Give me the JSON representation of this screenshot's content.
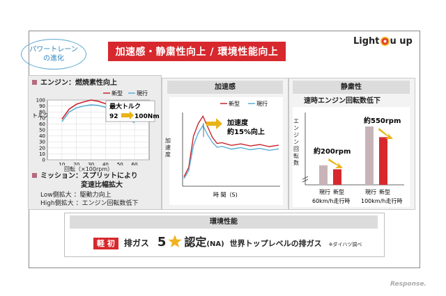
{
  "header": {
    "tag_line1": "パワートレーン",
    "tag_line2": "の進化",
    "banner": "加速感・静粛性向上 / 環境性能向上",
    "brand_before": "Light ",
    "brand_after": "u up",
    "brand_o": "o"
  },
  "engine": {
    "title": "エンジン：燃焼素性向上",
    "legend_new": "新型",
    "legend_current": "現行",
    "ylabel": "トルク (Nm)",
    "xlabel": "回転（×100rpm）",
    "callout_title": "最大トルク",
    "callout_from": "92",
    "callout_to": "100Nm"
  },
  "mission": {
    "line1": "ミッション：スプリットにより",
    "line2": "変速比幅拡大",
    "line3": "Low側拡大 ：駆動力向上",
    "line4": "High側拡大 ：エンジン回転数低下"
  },
  "accel": {
    "head": "加速感",
    "legend_new": "新型",
    "legend_current": "現行",
    "ylabel": "加速度",
    "xlabel": "時 間（S)",
    "annotation_line1": "加速度",
    "annotation_line2": "約15%向上"
  },
  "quiet": {
    "head": "静粛性",
    "subtitle": "速時エンジン回転数低下",
    "ylabel": "エンジン回転数",
    "label_200": "約200rpm",
    "label_550": "約550rpm",
    "cat1_current": "現行",
    "cat1_new": "新型",
    "cat1_speed": "60km/h走行時",
    "cat2_current": "現行",
    "cat2_new": "新型",
    "cat2_speed": "100km/h走行時"
  },
  "env": {
    "head": "環境性能",
    "badge": "軽 初",
    "text1": "排ガス",
    "stars": "5",
    "text2": "認定",
    "text_na": "(NA)",
    "text3": "世界トップレベルの排ガス",
    "note": "※ダイハツ調べ"
  },
  "watermark": "Response.",
  "colors": {
    "new": "#c8232c",
    "current": "#5aaed6",
    "bar_current": "#c8b4b8",
    "bar_new": "#d7282d",
    "arrow": "#e9b418",
    "banner": "#d7282d"
  },
  "chart_data": [
    {
      "type": "line",
      "title": "エンジン：燃焼素性向上",
      "xlabel": "回転（×100rpm）",
      "ylabel": "トルク (Nm)",
      "xlim": [
        0,
        70
      ],
      "ylim": [
        0,
        100
      ],
      "x_ticks": [
        10,
        20,
        30,
        40,
        50,
        60
      ],
      "y_ticks": [
        0,
        10,
        20,
        30,
        40,
        50,
        60,
        70,
        80,
        90,
        100
      ],
      "series": [
        {
          "name": "新型",
          "x": [
            10,
            15,
            20,
            25,
            30,
            35,
            40,
            45,
            50,
            55,
            60
          ],
          "values": [
            68,
            85,
            93,
            97,
            100,
            98,
            94,
            88,
            81,
            73,
            65
          ]
        },
        {
          "name": "現行",
          "x": [
            10,
            15,
            20,
            25,
            30,
            35,
            40,
            45,
            50,
            55,
            60
          ],
          "values": [
            64,
            80,
            87,
            90,
            92,
            91,
            88,
            83,
            77,
            70,
            62
          ]
        }
      ]
    },
    {
      "type": "line",
      "title": "加速感",
      "xlabel": "時 間（S)",
      "ylabel": "加速度",
      "series": [
        {
          "name": "新型",
          "x": [
            0,
            0.05,
            0.1,
            0.15,
            0.2,
            0.25,
            0.3,
            0.35,
            0.4,
            0.5,
            0.6,
            0.7,
            0.8,
            0.9,
            1.0
          ],
          "values": [
            0.15,
            0.3,
            0.8,
            1.0,
            1.12,
            0.95,
            0.78,
            0.7,
            0.68,
            0.67,
            0.66,
            0.66,
            0.65,
            0.65,
            0.64
          ]
        },
        {
          "name": "現行",
          "x": [
            0,
            0.05,
            0.1,
            0.15,
            0.2,
            0.25,
            0.3,
            0.35,
            0.4,
            0.5,
            0.6,
            0.7,
            0.8,
            0.9,
            1.0
          ],
          "values": [
            0.12,
            0.25,
            0.65,
            0.85,
            0.97,
            0.82,
            0.7,
            0.64,
            0.62,
            0.61,
            0.6,
            0.6,
            0.59,
            0.59,
            0.58
          ]
        }
      ]
    },
    {
      "type": "bar",
      "title": "静粛性",
      "ylabel": "エンジン回転数",
      "categories": [
        "60km/h走行時",
        "100km/h走行時"
      ],
      "series": [
        {
          "name": "現行",
          "values": [
            1.0,
            3.0
          ]
        },
        {
          "name": "新型",
          "values": [
            0.8,
            2.45
          ]
        }
      ],
      "annotations": [
        "約200rpm",
        "約550rpm"
      ]
    }
  ]
}
